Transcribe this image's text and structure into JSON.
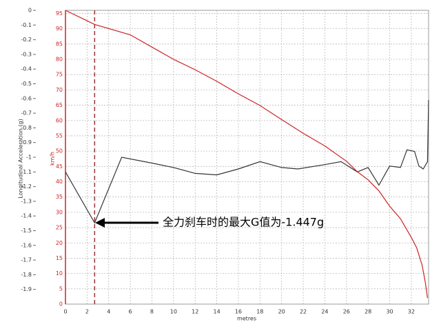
{
  "chart_data": {
    "type": "line",
    "x_label": "metres",
    "y_label": "Longitudinal Acceleration (g)",
    "y2_label": "km/h",
    "annotation": "全力刹车时的最大G值为-1.447g",
    "marker_x": 2.7,
    "xlim": [
      0,
      33.6
    ],
    "xticks": [
      0,
      2,
      4,
      6,
      8,
      10,
      12,
      14,
      16,
      18,
      20,
      22,
      24,
      26,
      28,
      30,
      32
    ],
    "ylim": [
      -2,
      0
    ],
    "yticks": [
      0,
      -0.1,
      -0.2,
      -0.3,
      -0.4,
      -0.5,
      -0.6,
      -0.7,
      -0.8,
      -0.9,
      -1,
      -1.1,
      -1.2,
      -1.3,
      -1.4,
      -1.5,
      -1.6,
      -1.7,
      -1.8,
      -1.9
    ],
    "y2lim": [
      0,
      96
    ],
    "y2ticks": [
      0,
      5,
      10,
      15,
      20,
      25,
      30,
      35,
      40,
      45,
      50,
      55,
      60,
      65,
      70,
      75,
      80,
      85,
      90,
      95
    ],
    "grid": true,
    "series": [
      {
        "color": "#333333",
        "x": [
          0,
          2.7,
          5.2,
          8,
          10,
          12,
          14,
          16,
          18,
          20,
          21.5,
          24,
          25.5,
          27,
          28,
          29,
          30,
          31,
          31.6,
          32.3,
          32.7,
          33.1,
          33.5,
          33.6
        ],
        "values": [
          -1.1,
          -1.447,
          -1.0,
          -1.04,
          -1.07,
          -1.11,
          -1.12,
          -1.08,
          -1.03,
          -1.07,
          -1.08,
          -1.05,
          -1.03,
          -1.1,
          -1.07,
          -1.19,
          -1.06,
          -1.07,
          -0.95,
          -0.96,
          -1.06,
          -1.08,
          -1.03,
          -0.61
        ]
      },
      {
        "color": "#cc2222",
        "axis": "y2",
        "x": [
          0,
          2.7,
          6,
          8,
          10,
          12,
          14,
          16,
          18,
          20,
          22,
          24,
          26,
          27,
          28,
          29,
          30,
          31,
          32,
          32.5,
          33,
          33.3,
          33.5
        ],
        "values": [
          96,
          91.4,
          88,
          84,
          80,
          76.6,
          72.8,
          68.7,
          64.9,
          60.3,
          55.8,
          51.7,
          46.7,
          43.3,
          40.6,
          37,
          32,
          27.9,
          21.8,
          18.4,
          12.7,
          7,
          2
        ]
      }
    ]
  }
}
